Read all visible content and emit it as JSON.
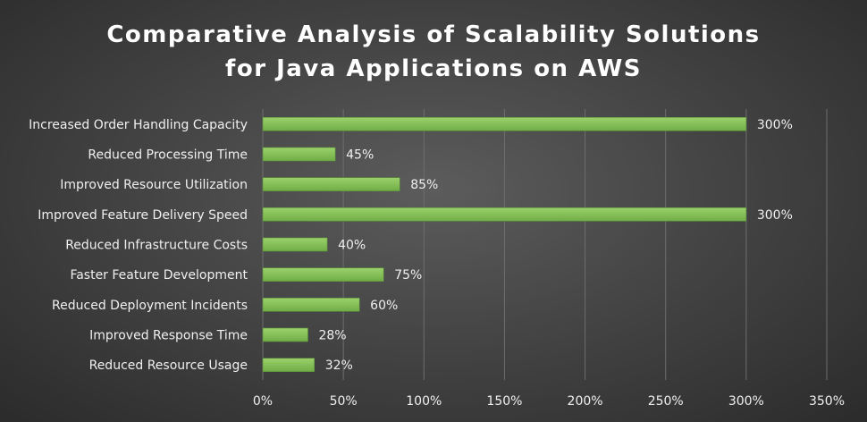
{
  "chart_data": {
    "type": "bar",
    "orientation": "horizontal",
    "title_lines": [
      "Comparative Analysis of Scalability Solutions",
      "for Java Applications on AWS"
    ],
    "categories": [
      "Increased Order Handling Capacity",
      "Reduced Processing Time",
      "Improved Resource Utilization",
      "Improved Feature Delivery Speed",
      "Reduced Infrastructure Costs",
      "Faster Feature Development",
      "Reduced Deployment Incidents",
      "Improved Response Time",
      "Reduced Resource Usage"
    ],
    "values": [
      300,
      45,
      85,
      300,
      40,
      75,
      60,
      28,
      32
    ],
    "value_labels": [
      "300%",
      "45%",
      "85%",
      "300%",
      "40%",
      "75%",
      "60%",
      "28%",
      "32%"
    ],
    "xlim": [
      0,
      350
    ],
    "xticks": [
      0,
      50,
      100,
      150,
      200,
      250,
      300,
      350
    ],
    "xtick_labels": [
      "0%",
      "50%",
      "100%",
      "150%",
      "200%",
      "250%",
      "300%",
      "350%"
    ],
    "xlabel": "",
    "ylabel": "",
    "grid": "vertical",
    "legend": "none",
    "colors": {
      "bar_fill": "#70ad47",
      "bar_highlight": "#9bd16a",
      "bar_edge": "#5a8f38",
      "grid": "#6e6e6e",
      "text": "#f0f0f0"
    }
  }
}
